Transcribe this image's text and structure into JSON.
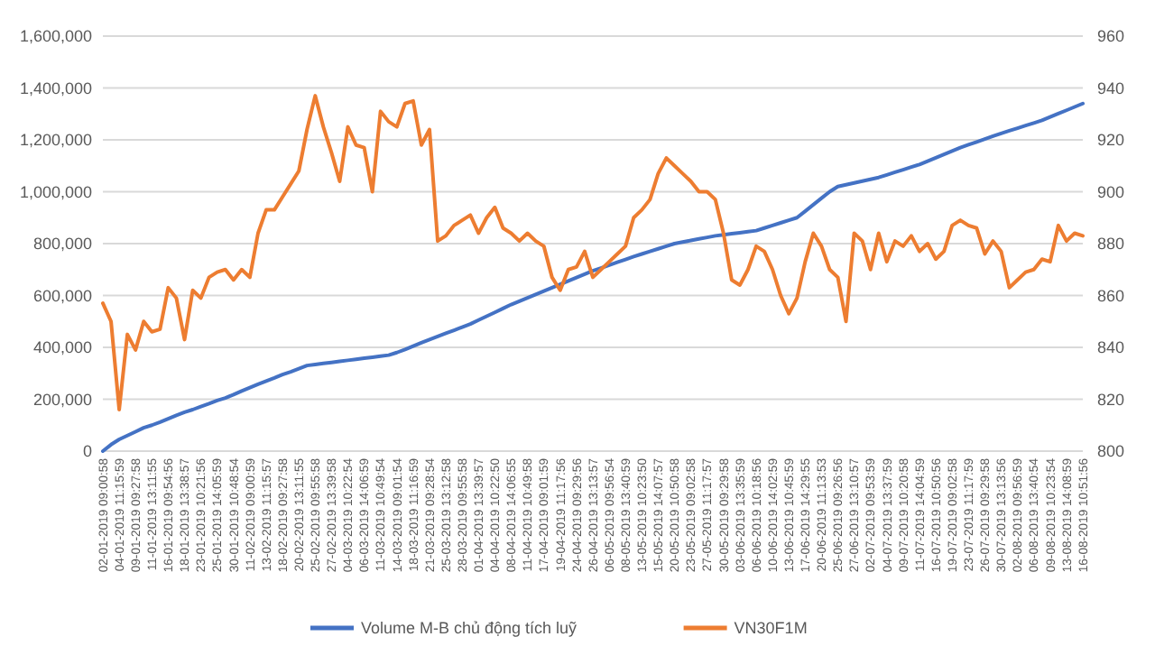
{
  "chart_data": {
    "type": "line",
    "categories": [
      "02-01-2019 09:00:58",
      null,
      "04-01-2019 11:15:59",
      null,
      "09-01-2019 09:27:58",
      null,
      "11-01-2019 13:11:55",
      null,
      "16-01-2019 09:54:56",
      null,
      "18-01-2019 13:38:57",
      null,
      "23-01-2019 10:21:56",
      null,
      "25-01-2019 14:05:59",
      null,
      "30-01-2019 10:48:54",
      null,
      "11-02-2019 09:00:59",
      null,
      "13-02-2019 11:15:57",
      null,
      "18-02-2019 09:27:58",
      null,
      "20-02-2019 13:11:55",
      null,
      "25-02-2019 09:55:58",
      null,
      "27-02-2019 13:39:58",
      null,
      "04-03-2019 10:22:54",
      null,
      "06-03-2019 14:06:59",
      null,
      "11-03-2019 10:49:54",
      null,
      "14-03-2019 09:01:54",
      null,
      "18-03-2019 11:16:59",
      null,
      "21-03-2019 09:28:54",
      null,
      "25-03-2019 13:12:58",
      null,
      "28-03-2019 09:55:58",
      null,
      "01-04-2019 13:39:57",
      null,
      "04-04-2019 10:22:50",
      null,
      "08-04-2019 14:06:55",
      null,
      "11-04-2019 10:49:58",
      null,
      "17-04-2019 09:01:59",
      null,
      "19-04-2019 11:17:56",
      null,
      "24-04-2019 09:29:56",
      null,
      "26-04-2019 13:13:57",
      null,
      "06-05-2019 09:56:54",
      null,
      "08-05-2019 13:40:59",
      null,
      "13-05-2019 10:23:50",
      null,
      "15-05-2019 14:07:57",
      null,
      "20-05-2019 10:50:58",
      null,
      "23-05-2019 09:02:58",
      null,
      "27-05-2019 11:17:57",
      null,
      "30-05-2019 09:29:58",
      null,
      "03-06-2019 13:35:59",
      null,
      "06-06-2019 10:18:56",
      null,
      "10-06-2019 14:02:59",
      null,
      "13-06-2019 10:45:59",
      null,
      "17-06-2019 14:29:55",
      null,
      "20-06-2019 11:13:53",
      null,
      "25-06-2019 09:26:56",
      null,
      "27-06-2019 13:10:57",
      null,
      "02-07-2019 09:53:59",
      null,
      "04-07-2019 13:37:59",
      null,
      "09-07-2019 10:20:58",
      null,
      "11-07-2019 14:04:59",
      null,
      "16-07-2019 10:50:56",
      null,
      "19-07-2019 09:02:58",
      null,
      "23-07-2019 11:17:59",
      null,
      "26-07-2019 09:29:58",
      null,
      "30-07-2019 13:13:56",
      null,
      "02-08-2019 09:56:59",
      null,
      "06-08-2019 13:40:54",
      null,
      "09-08-2019 10:23:54",
      null,
      "13-08-2019 14:08:59",
      null,
      "16-08-2019 10:51:56"
    ],
    "series": [
      {
        "name": "Volume M-B chủ động tích luỹ",
        "color": "#4472c4",
        "values": [
          0,
          25000,
          45000,
          60000,
          75000,
          90000,
          100000,
          112000,
          125000,
          138000,
          150000,
          160000,
          172000,
          183000,
          195000,
          205000,
          218000,
          232000,
          245000,
          258000,
          270000,
          282000,
          295000,
          306000,
          318000,
          330000,
          334000,
          338000,
          342000,
          346000,
          350000,
          354000,
          358000,
          362000,
          366000,
          370000,
          380000,
          392000,
          405000,
          418000,
          430000,
          442000,
          454000,
          466000,
          478000,
          490000,
          505000,
          520000,
          535000,
          550000,
          565000,
          578000,
          591000,
          604000,
          617000,
          630000,
          643000,
          656000,
          669000,
          682000,
          695000,
          706000,
          717000,
          728000,
          739000,
          750000,
          760000,
          770000,
          780000,
          790000,
          800000,
          806000,
          812000,
          818000,
          824000,
          830000,
          834000,
          838000,
          842000,
          846000,
          850000,
          860000,
          870000,
          880000,
          890000,
          900000,
          925000,
          950000,
          975000,
          1000000,
          1020000,
          1027000,
          1034000,
          1041000,
          1048000,
          1055000,
          1065000,
          1075000,
          1085000,
          1095000,
          1105000,
          1118000,
          1131000,
          1144000,
          1157000,
          1170000,
          1181000,
          1192000,
          1203000,
          1214000,
          1225000,
          1235000,
          1245000,
          1255000,
          1265000,
          1275000,
          1288000,
          1301000,
          1314000,
          1327000,
          1340000
        ]
      },
      {
        "name": "VN30F1M",
        "color": "#ed7d31",
        "axis": "y2",
        "values": [
          857,
          850,
          816,
          845,
          839,
          850,
          846,
          847,
          863,
          859,
          843,
          862,
          859,
          867,
          869,
          870,
          866,
          870,
          867,
          884,
          893,
          893,
          898,
          903,
          908,
          924,
          937,
          925,
          915,
          904,
          925,
          918,
          917,
          900,
          931,
          927,
          925,
          934,
          935,
          918,
          924,
          881,
          883,
          887,
          889,
          891,
          884,
          890,
          894,
          886,
          884,
          881,
          884,
          881,
          879,
          867,
          862,
          870,
          871,
          877,
          867,
          870,
          873,
          876,
          879,
          890,
          893,
          897,
          907,
          913,
          910,
          907,
          904,
          900,
          900,
          897,
          884,
          866,
          864,
          870,
          879,
          877,
          870,
          860,
          853,
          859,
          873,
          884,
          879,
          870,
          867,
          850,
          884,
          881,
          870,
          884,
          873,
          881,
          879,
          883,
          877,
          880,
          874,
          877,
          887,
          889,
          887,
          886,
          876,
          881,
          877,
          863,
          866,
          869,
          870,
          874,
          873,
          887,
          881,
          884,
          883
        ]
      }
    ],
    "ylim": [
      0,
      1600000
    ],
    "yticks": [
      {
        "value": 0,
        "label": "0"
      },
      {
        "value": 200000,
        "label": "200,000"
      },
      {
        "value": 400000,
        "label": "400,000"
      },
      {
        "value": 600000,
        "label": "600,000"
      },
      {
        "value": 800000,
        "label": "800,000"
      },
      {
        "value": 1000000,
        "label": "1,000,000"
      },
      {
        "value": 1200000,
        "label": "1,200,000"
      },
      {
        "value": 1400000,
        "label": "1,400,000"
      },
      {
        "value": 1600000,
        "label": "1,600,000"
      }
    ],
    "y2lim": [
      800,
      960
    ],
    "y2ticks": [
      800,
      820,
      840,
      860,
      880,
      900,
      920,
      940,
      960
    ],
    "grid": "y",
    "legend": "bottom"
  }
}
